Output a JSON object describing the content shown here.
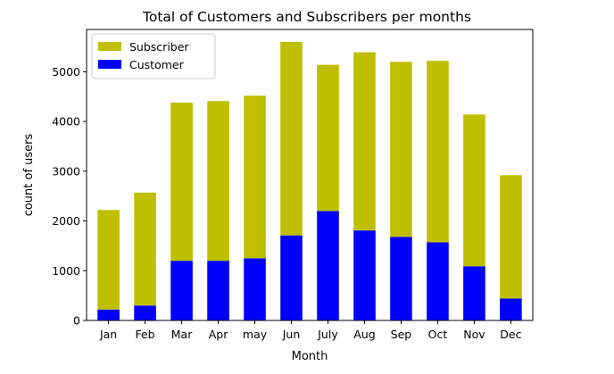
{
  "chart_data": {
    "type": "bar",
    "stacked": true,
    "title": "Total of Customers and Subscribers per months",
    "xlabel": "Month",
    "ylabel": "count of users",
    "categories": [
      "Jan",
      "Feb",
      "Mar",
      "Apr",
      "may",
      "Jun",
      "July",
      "Aug",
      "Sep",
      "Oct",
      "Nov",
      "Dec"
    ],
    "series": [
      {
        "name": "Customer",
        "color": "#0000ff",
        "values": [
          220,
          300,
          1200,
          1200,
          1250,
          1710,
          2200,
          1810,
          1680,
          1570,
          1090,
          440
        ]
      },
      {
        "name": "Subscriber",
        "color": "#bfbf00",
        "values": [
          2000,
          2270,
          3180,
          3210,
          3270,
          3890,
          2940,
          3580,
          3520,
          3650,
          3050,
          2480
        ]
      }
    ],
    "ylim": [
      0,
      5850
    ],
    "yticks": [
      0,
      1000,
      2000,
      3000,
      4000,
      5000
    ],
    "legend": {
      "position": "top-left",
      "order": [
        "Subscriber",
        "Customer"
      ]
    },
    "grid": false
  }
}
